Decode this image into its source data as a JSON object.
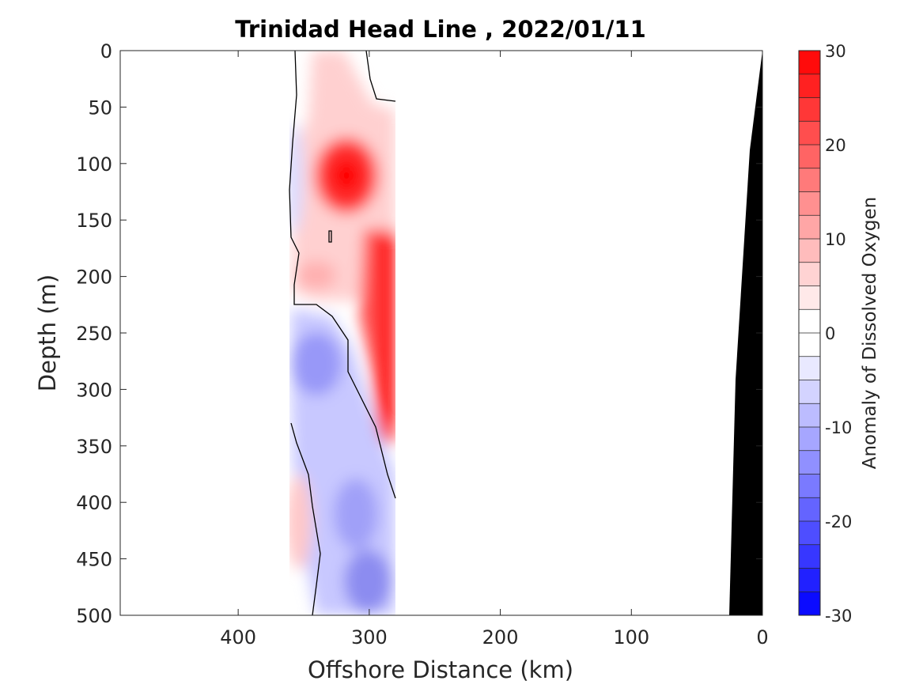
{
  "chart_data": {
    "type": "heatmap",
    "title": "Trinidad Head Line , 2022/01/11",
    "xlabel": "Offshore Distance (km)",
    "ylabel": "Depth (m)",
    "xlim": [
      490,
      0
    ],
    "ylim": [
      0,
      500
    ],
    "x_ticks": [
      400,
      300,
      200,
      100,
      0
    ],
    "y_ticks": [
      0,
      50,
      100,
      150,
      200,
      250,
      300,
      350,
      400,
      450,
      500
    ],
    "colorbar": {
      "label": "Anomaly of Dissolved Oxygen",
      "range": [
        -30,
        30
      ],
      "ticks": [
        30,
        20,
        10,
        0,
        -10,
        -20,
        -30
      ],
      "levels": 24,
      "positive_color": "#ff0000",
      "negative_color": "#0000ff"
    },
    "data_extent": {
      "x_range_km": [
        360,
        280
      ]
    },
    "anomaly_features": [
      {
        "depth_m": 115,
        "distance_km": 318,
        "value": 28
      },
      {
        "depth_m": 200,
        "distance_km": 283,
        "value": 28
      },
      {
        "depth_m": 260,
        "distance_km": 283,
        "value": 27
      },
      {
        "depth_m": 320,
        "distance_km": 283,
        "value": 22
      },
      {
        "depth_m": 200,
        "distance_km": 340,
        "value": 8
      },
      {
        "depth_m": 260,
        "distance_km": 340,
        "value": -13
      },
      {
        "depth_m": 410,
        "distance_km": 310,
        "value": -13
      },
      {
        "depth_m": 470,
        "distance_km": 300,
        "value": -15
      },
      {
        "depth_m": 420,
        "distance_km": 358,
        "value": 6
      }
    ],
    "bathymetry_color": "#000000"
  }
}
